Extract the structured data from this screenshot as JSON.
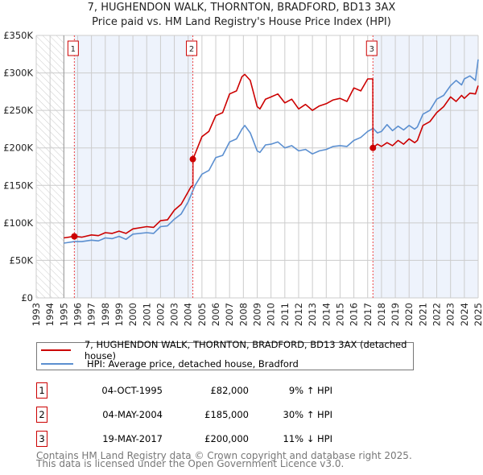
{
  "title": "7, HUGHENDON WALK, THORNTON, BRADFORD, BD13 3AX",
  "subtitle": "Price paid vs. HM Land Registry's House Price Index (HPI)",
  "chart_data": {
    "type": "line",
    "title": "7, HUGHENDON WALK, THORNTON, BRADFORD, BD13 3AX",
    "subtitle": "Price paid vs. HM Land Registry's House Price Index (HPI)",
    "xlim": [
      1993,
      2025
    ],
    "ylim": [
      0,
      350000
    ],
    "y_ticks": [
      0,
      50000,
      100000,
      150000,
      200000,
      250000,
      300000,
      350000
    ],
    "y_tick_labels": [
      "£0",
      "£50K",
      "£100K",
      "£150K",
      "£200K",
      "£250K",
      "£300K",
      "£350K"
    ],
    "x_ticks": [
      "1993",
      "1994",
      "1995",
      "1996",
      "1997",
      "1998",
      "1999",
      "2000",
      "2001",
      "2002",
      "2003",
      "2004",
      "2005",
      "2006",
      "2007",
      "2008",
      "2009",
      "2010",
      "2011",
      "2012",
      "2013",
      "2014",
      "2015",
      "2016",
      "2017",
      "2018",
      "2019",
      "2020",
      "2021",
      "2022",
      "2023",
      "2024",
      "2025"
    ],
    "grid": true,
    "colors": {
      "property": "#cc0000",
      "hpi": "#5b8fd0",
      "band": "#eef3fc"
    },
    "series": [
      {
        "name": "7, HUGHENDON WALK, THORNTON, BRADFORD, BD13 3AX (detached house)",
        "color": "#cc0000",
        "x": [
          1995,
          1995.75,
          1996.3,
          1997,
          1997.5,
          1998,
          1998.5,
          1999,
          1999.5,
          2000,
          2001,
          2001.5,
          2002,
          2002.5,
          2003,
          2003.5,
          2004.2,
          2004.34,
          2004.35,
          2005,
          2005.5,
          2006,
          2006.5,
          2007,
          2007.5,
          2007.9,
          2008.1,
          2008.5,
          2009,
          2009.2,
          2009.6,
          2010,
          2010.5,
          2011,
          2011.5,
          2012,
          2012.5,
          2013,
          2013.5,
          2014,
          2014.5,
          2015,
          2015.5,
          2016,
          2016.5,
          2017,
          2017.37,
          2017.38,
          2017.7,
          2018,
          2018.4,
          2018.8,
          2019.2,
          2019.6,
          2020,
          2020.4,
          2020.6,
          2021,
          2021.5,
          2022,
          2022.5,
          2023,
          2023.4,
          2023.8,
          2024,
          2024.4,
          2024.8,
          2025
        ],
        "y": [
          80000,
          82000,
          81000,
          84000,
          83000,
          87000,
          86000,
          89000,
          86000,
          92000,
          95000,
          94000,
          103000,
          104000,
          117000,
          125000,
          148000,
          150000,
          185000,
          215000,
          222000,
          243000,
          247000,
          272000,
          276000,
          295000,
          298000,
          290000,
          255000,
          252000,
          265000,
          268000,
          272000,
          260000,
          265000,
          252000,
          258000,
          250000,
          256000,
          259000,
          264000,
          266000,
          262000,
          280000,
          276000,
          292000,
          292000,
          200000,
          205000,
          202000,
          207000,
          203000,
          210000,
          205000,
          212000,
          207000,
          210000,
          230000,
          235000,
          247000,
          255000,
          268000,
          262000,
          270000,
          266000,
          273000,
          272000,
          283000
        ]
      },
      {
        "name": "HPI: Average price, detached house, Bradford",
        "color": "#5b8fd0",
        "x": [
          1995,
          1995.75,
          1996.3,
          1997,
          1997.5,
          1998,
          1998.5,
          1999,
          1999.5,
          2000,
          2001,
          2001.5,
          2002,
          2002.5,
          2003,
          2003.5,
          2004,
          2004.5,
          2005,
          2005.5,
          2006,
          2006.5,
          2007,
          2007.5,
          2007.9,
          2008.1,
          2008.5,
          2009,
          2009.2,
          2009.6,
          2010,
          2010.5,
          2011,
          2011.5,
          2012,
          2012.5,
          2013,
          2013.5,
          2014,
          2014.5,
          2015,
          2015.5,
          2016,
          2016.5,
          2017,
          2017.4,
          2017.7,
          2018,
          2018.4,
          2018.8,
          2019.2,
          2019.6,
          2020,
          2020.4,
          2020.6,
          2021,
          2021.5,
          2022,
          2022.5,
          2023,
          2023.4,
          2023.8,
          2024,
          2024.4,
          2024.8,
          2025
        ],
        "y": [
          73000,
          75000,
          75000,
          77000,
          76000,
          80000,
          79000,
          82000,
          78000,
          85000,
          87000,
          86000,
          95000,
          96000,
          105000,
          112000,
          128000,
          150000,
          165000,
          170000,
          187000,
          190000,
          208000,
          212000,
          225000,
          230000,
          220000,
          196000,
          194000,
          204000,
          205000,
          208000,
          200000,
          203000,
          196000,
          198000,
          192000,
          196000,
          198000,
          202000,
          203000,
          202000,
          210000,
          214000,
          222000,
          226000,
          220000,
          222000,
          231000,
          223000,
          229000,
          224000,
          230000,
          225000,
          228000,
          245000,
          250000,
          265000,
          270000,
          283000,
          290000,
          284000,
          292000,
          296000,
          290000,
          318000
        ]
      }
    ],
    "sales": [
      {
        "id": "1",
        "x": 1995.76,
        "price": 82000
      },
      {
        "id": "2",
        "x": 2004.34,
        "price": 185000
      },
      {
        "id": "3",
        "x": 2017.38,
        "price": 200000
      }
    ],
    "legend_placement": "bottom"
  },
  "legend": {
    "property": "7, HUGHENDON WALK, THORNTON, BRADFORD, BD13 3AX (detached house)",
    "hpi": "HPI: Average price, detached house, Bradford"
  },
  "transactions": [
    {
      "num": "1",
      "date": "04-OCT-1995",
      "price": "£82,000",
      "hpi": "9% ↑ HPI"
    },
    {
      "num": "2",
      "date": "04-MAY-2004",
      "price": "£185,000",
      "hpi": "30% ↑ HPI"
    },
    {
      "num": "3",
      "date": "19-MAY-2017",
      "price": "£200,000",
      "hpi": "11% ↓ HPI"
    }
  ],
  "footer": {
    "line1": "Contains HM Land Registry data © Crown copyright and database right 2025.",
    "line2": "This data is licensed under the Open Government Licence v3.0."
  }
}
